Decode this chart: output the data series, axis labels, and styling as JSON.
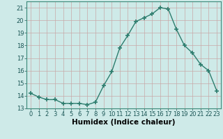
{
  "x": [
    0,
    1,
    2,
    3,
    4,
    5,
    6,
    7,
    8,
    9,
    10,
    11,
    12,
    13,
    14,
    15,
    16,
    17,
    18,
    19,
    20,
    21,
    22,
    23
  ],
  "y": [
    14.2,
    13.9,
    13.7,
    13.7,
    13.4,
    13.4,
    13.4,
    13.3,
    13.5,
    14.8,
    15.9,
    17.8,
    18.8,
    19.9,
    20.2,
    20.5,
    21.0,
    20.9,
    19.3,
    18.0,
    17.4,
    16.5,
    16.0,
    14.4
  ],
  "line_color": "#2d7d6e",
  "marker": "+",
  "marker_size": 4,
  "marker_lw": 1.2,
  "bg_color": "#ceeae8",
  "grid_color": "#b8d4d2",
  "grid_minor_color": "#d0e8e6",
  "xlabel": "Humidex (Indice chaleur)",
  "xlim": [
    -0.5,
    23.5
  ],
  "ylim": [
    13,
    21.5
  ],
  "yticks": [
    13,
    14,
    15,
    16,
    17,
    18,
    19,
    20,
    21
  ],
  "xticks": [
    0,
    1,
    2,
    3,
    4,
    5,
    6,
    7,
    8,
    9,
    10,
    11,
    12,
    13,
    14,
    15,
    16,
    17,
    18,
    19,
    20,
    21,
    22,
    23
  ],
  "xlabel_fontsize": 7.5,
  "tick_fontsize": 6,
  "line_width": 1.0
}
